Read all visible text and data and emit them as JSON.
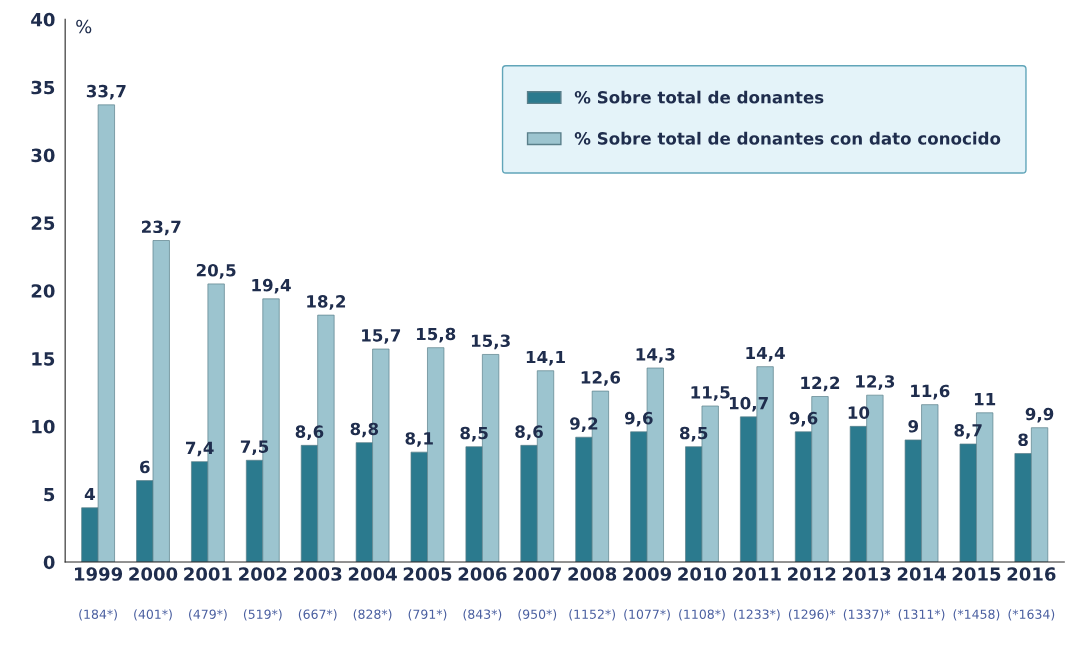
{
  "chart_data": {
    "type": "bar",
    "ylabel": "%",
    "categories": [
      "1999",
      "2000",
      "2001",
      "2002",
      "2003",
      "2004",
      "2005",
      "2006",
      "2007",
      "2008",
      "2009",
      "2010",
      "2011",
      "2012",
      "2013",
      "2014",
      "2015",
      "2016"
    ],
    "annotations": [
      "(184*)",
      "(401*)",
      "(479*)",
      "(519*)",
      "(667*)",
      "(828*)",
      "(791*)",
      "(843*)",
      "(950*)",
      "(1152*)",
      "(1077*)",
      "(1108*)",
      "(1233*)",
      "(1296)*",
      "(1337)*",
      "(1311*)",
      "(*1458)",
      "(*1634)"
    ],
    "series": [
      {
        "name": "% Sobre total de donantes",
        "color": "#2b7a8e",
        "values": [
          4,
          6,
          7.4,
          7.5,
          8.6,
          8.8,
          8.1,
          8.5,
          8.6,
          9.2,
          9.6,
          8.5,
          10.7,
          9.6,
          10,
          9,
          8.7,
          8
        ],
        "value_labels": [
          "4",
          "6",
          "7,4",
          "7,5",
          "8,6",
          "8,8",
          "8,1",
          "8,5",
          "8,6",
          "9,2",
          "9,6",
          "8,5",
          "10,7",
          "9,6",
          "10",
          "9",
          "8,7",
          "8"
        ]
      },
      {
        "name": "% Sobre total de donantes con dato conocido",
        "color": "#9cc4cf",
        "values": [
          33.7,
          23.7,
          20.5,
          19.4,
          18.2,
          15.7,
          15.8,
          15.3,
          14.1,
          12.6,
          14.3,
          11.5,
          14.4,
          12.2,
          12.3,
          11.6,
          11,
          9.9
        ],
        "value_labels": [
          "33,7",
          "23,7",
          "20,5",
          "19,4",
          "18,2",
          "15,7",
          "15,8",
          "15,3",
          "14,1",
          "12,6",
          "14,3",
          "11,5",
          "14,4",
          "12,2",
          "12,3",
          "11,6",
          "11",
          "9,9"
        ]
      }
    ],
    "ylim": [
      0,
      40
    ],
    "yticks": [
      0,
      5,
      10,
      15,
      20,
      25,
      30,
      35,
      40
    ],
    "grid": false,
    "legend": "top right"
  }
}
